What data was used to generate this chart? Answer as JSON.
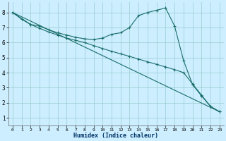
{
  "xlabel": "Humidex (Indice chaleur)",
  "ylabel": "",
  "bg_color": "#cceeff",
  "line_color": "#1a6e6a",
  "xlim": [
    -0.5,
    23.5
  ],
  "ylim": [
    0.5,
    8.7
  ],
  "yticks": [
    1,
    2,
    3,
    4,
    5,
    6,
    7,
    8
  ],
  "xticks": [
    0,
    1,
    2,
    3,
    4,
    5,
    6,
    7,
    8,
    9,
    10,
    11,
    12,
    13,
    14,
    15,
    16,
    17,
    18,
    19,
    20,
    21,
    22,
    23
  ],
  "line1_x": [
    0,
    1,
    2,
    3,
    4,
    5,
    6,
    7,
    8,
    9,
    10,
    11,
    12,
    13,
    14,
    15,
    16,
    17,
    18,
    19,
    20,
    21,
    22,
    23
  ],
  "line1_y": [
    8.0,
    7.55,
    7.2,
    7.1,
    6.85,
    6.65,
    6.5,
    6.35,
    6.25,
    6.2,
    6.3,
    6.55,
    6.65,
    7.0,
    7.8,
    8.0,
    8.15,
    8.3,
    7.1,
    4.8,
    3.2,
    2.45,
    1.75,
    1.4
  ],
  "line2_x": [
    0,
    2,
    3,
    4,
    5,
    6,
    7,
    8,
    9,
    10,
    11,
    12,
    13,
    14,
    15,
    16,
    17,
    18,
    19,
    20,
    21,
    22,
    23
  ],
  "line2_y": [
    8.0,
    7.2,
    6.95,
    6.7,
    6.5,
    6.3,
    6.15,
    6.0,
    5.8,
    5.6,
    5.42,
    5.25,
    5.08,
    4.9,
    4.72,
    4.55,
    4.38,
    4.2,
    4.0,
    3.25,
    2.5,
    1.75,
    1.4
  ],
  "line3_x": [
    0,
    23
  ],
  "line3_y": [
    8.0,
    1.4
  ]
}
